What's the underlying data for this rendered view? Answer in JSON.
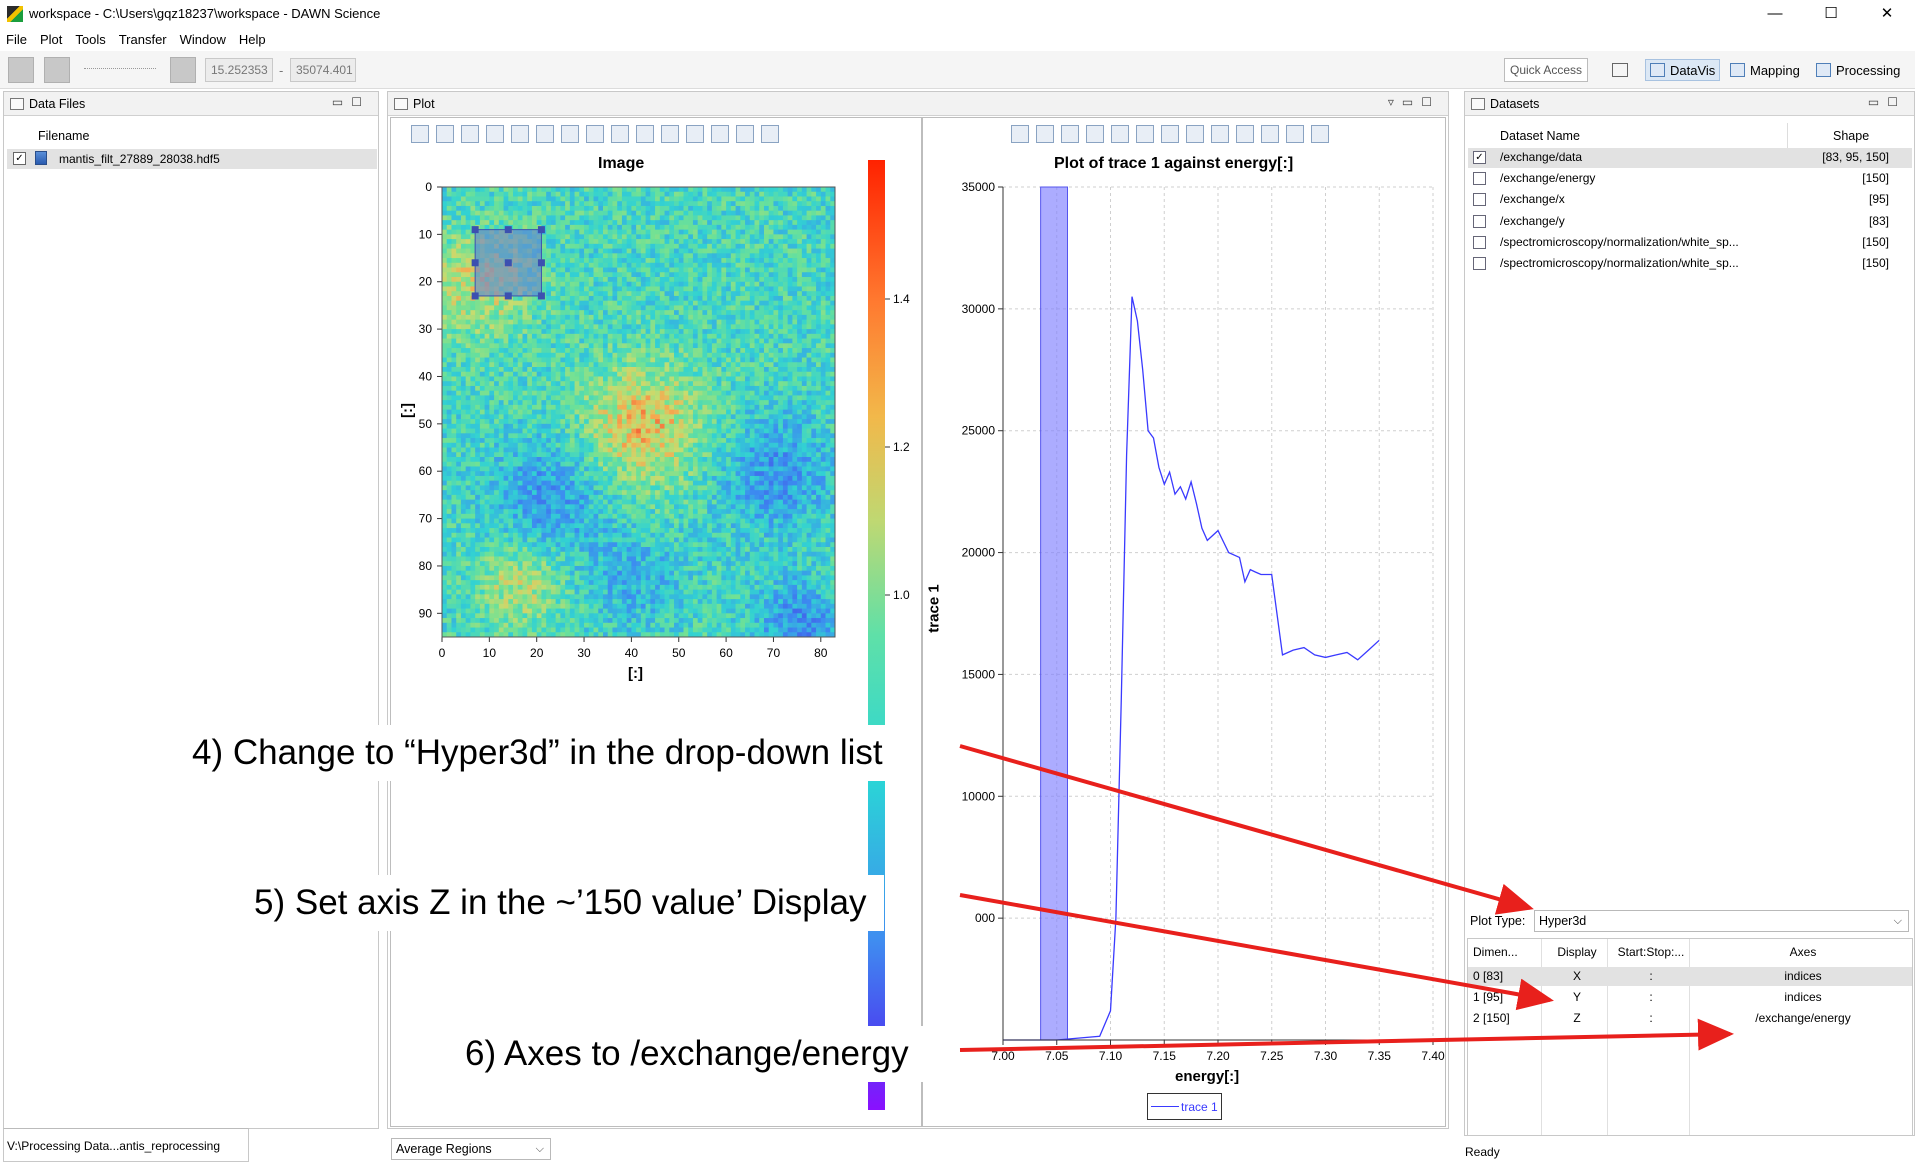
{
  "window": {
    "title": "workspace - C:\\Users\\gqz18237\\workspace - DAWN Science",
    "minimize": "—",
    "maximize": "☐",
    "close": "✕"
  },
  "menu": [
    "File",
    "Plot",
    "Tools",
    "Transfer",
    "Window",
    "Help"
  ],
  "toolbar": {
    "min_value": "15.252353",
    "max_value": "35074.401",
    "dash": "-",
    "quick_access": "Quick Access",
    "perspectives": [
      "DataVis",
      "Mapping",
      "Processing"
    ],
    "active_perspective": "DataVis"
  },
  "data_files": {
    "tab": "Data Files",
    "column": "Filename",
    "files": [
      {
        "name": "mantis_filt_27889_28038.hdf5",
        "checked": true
      }
    ]
  },
  "plot_view": {
    "tab": "Plot",
    "image": {
      "title": "Image",
      "xlabel": "[:]",
      "ylabel": "[:]",
      "x_ticks": [
        "0",
        "10",
        "20",
        "30",
        "40",
        "50",
        "60",
        "70",
        "80"
      ],
      "y_ticks": [
        "0",
        "10",
        "20",
        "30",
        "40",
        "50",
        "60",
        "70",
        "80",
        "90"
      ],
      "colorbar_ticks": [
        "1.4",
        "1.2",
        "1.0"
      ],
      "region": {
        "x0": 7,
        "x1": 21,
        "y0": 9,
        "y1": 23
      }
    },
    "trace": {
      "title": "Plot of trace 1 against energy[:]",
      "xlabel": "energy[:]",
      "ylabel": "trace 1",
      "legend": "trace 1",
      "x_ticks": [
        "7.00",
        "7.05",
        "7.10",
        "7.15",
        "7.20",
        "7.25",
        "7.30",
        "7.35",
        "7.40"
      ],
      "y_ticks": [
        "35000",
        "30000",
        "25000",
        "20000",
        "15000",
        "10000",
        "000"
      ]
    },
    "mode_dropdown": "Average Regions"
  },
  "chart_data": {
    "type": "line",
    "title": "Plot of trace 1 against energy[:]",
    "xlabel": "energy[:]",
    "ylabel": "trace 1",
    "xlim": [
      7.0,
      7.4
    ],
    "ylim": [
      0,
      35000
    ],
    "grid": true,
    "legend_placement": "bottom",
    "series": [
      {
        "name": "trace 1",
        "color": "#3a3aff",
        "x": [
          7.0,
          7.05,
          7.09,
          7.1,
          7.105,
          7.11,
          7.115,
          7.12,
          7.125,
          7.13,
          7.135,
          7.14,
          7.145,
          7.15,
          7.155,
          7.16,
          7.165,
          7.17,
          7.175,
          7.18,
          7.185,
          7.19,
          7.2,
          7.21,
          7.22,
          7.225,
          7.23,
          7.235,
          7.24,
          7.25,
          7.26,
          7.27,
          7.28,
          7.29,
          7.3,
          7.31,
          7.32,
          7.33,
          7.34,
          7.35
        ],
        "y": [
          0,
          0,
          150,
          1200,
          5000,
          14000,
          24000,
          30500,
          29500,
          27500,
          25000,
          24700,
          23500,
          22800,
          23300,
          22400,
          22700,
          22200,
          22900,
          22000,
          21000,
          20500,
          20900,
          20000,
          19800,
          18800,
          19300,
          19200,
          19100,
          19100,
          15800,
          16000,
          16100,
          15800,
          15700,
          15800,
          15900,
          15600,
          16000,
          16400
        ]
      }
    ],
    "highlight_band": [
      7.035,
      7.06
    ]
  },
  "datasets": {
    "tab": "Datasets",
    "columns": [
      "Dataset Name",
      "Shape"
    ],
    "rows": [
      {
        "name": "/exchange/data",
        "shape": "[83, 95, 150]",
        "checked": true
      },
      {
        "name": "/exchange/energy",
        "shape": "[150]",
        "checked": false
      },
      {
        "name": "/exchange/x",
        "shape": "[95]",
        "checked": false
      },
      {
        "name": "/exchange/y",
        "shape": "[83]",
        "checked": false
      },
      {
        "name": "/spectromicroscopy/normalization/white_sp...",
        "shape": "[150]",
        "checked": false
      },
      {
        "name": "/spectromicroscopy/normalization/white_sp...",
        "shape": "[150]",
        "checked": false
      }
    ],
    "plot_type_label": "Plot Type:",
    "plot_type_value": "Hyper3d",
    "axes_columns": [
      "Dimen...",
      "Display",
      "Start:Stop:...",
      "Axes"
    ],
    "axes_rows": [
      {
        "dim": "0 [83]",
        "display": "X",
        "slice": ":",
        "axes": "indices"
      },
      {
        "dim": "1 [95]",
        "display": "Y",
        "slice": ":",
        "axes": "indices"
      },
      {
        "dim": "2 [150]",
        "display": "Z",
        "slice": ":",
        "axes": "/exchange/energy"
      }
    ]
  },
  "status": {
    "left": "V:\\Processing Data...antis_reprocessing",
    "right": "Ready"
  },
  "annotations": [
    "4) Change to “Hyper3d” in the drop-down list",
    "5) Set axis Z in the ~’150 value’ Display",
    "6) Axes to /exchange/energy"
  ],
  "colors": {
    "annotation_arrow": "#e8201c",
    "selection_row": "#e2e2e2",
    "region": "#6a7fd0"
  }
}
